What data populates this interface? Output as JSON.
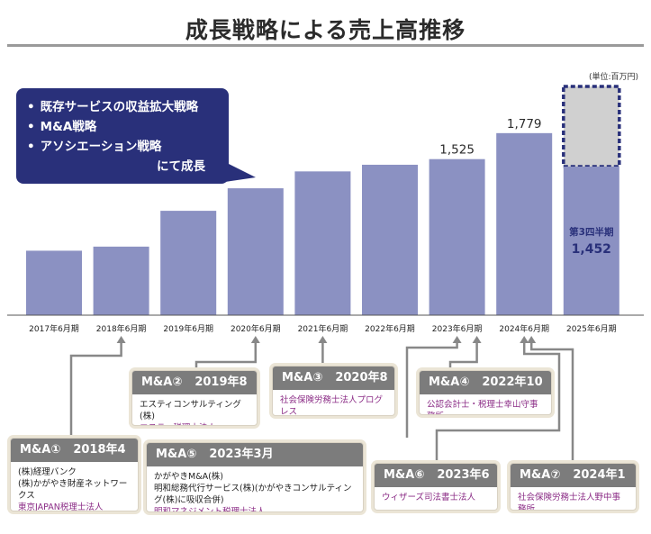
{
  "title": "成長戦略による売上高推移",
  "unit": "(単位:百万円)",
  "callout": {
    "items": [
      "既存サービスの収益拡大戦略",
      "M&A戦略",
      "アソシエーション戦略"
    ],
    "tail": "にて成長"
  },
  "chart_data": {
    "type": "bar",
    "categories": [
      "2017年6月期",
      "2018年6月期",
      "2019年6月期",
      "2020年6月期",
      "2021年6月期",
      "2022年6月期",
      "2023年6月期",
      "2024年6月期",
      "2025年6月期"
    ],
    "values": [
      630,
      670,
      1020,
      1240,
      1405,
      1470,
      1525,
      1779,
      1452
    ],
    "value_labels": [
      "",
      "",
      "",
      "",
      "",
      "",
      "1,525",
      "1,779",
      ""
    ],
    "ylim": [
      0,
      2200
    ],
    "last_bar_note": {
      "period": "第3四半期",
      "value": "1,452"
    },
    "projection": {
      "description": "dashed box above 2025 bar"
    },
    "colors": {
      "bar": "#8b91c2",
      "projection_fill": "#d0d0d0",
      "projection_border": "#29307a",
      "label": "#29307a"
    }
  },
  "deals": [
    {
      "id": "ma1",
      "code": "M&A①",
      "date": "2018年4月",
      "lines": [
        {
          "text": "(株)経理バンク",
          "color": "normal"
        },
        {
          "text": "(株)かがやき財産ネットワークス",
          "color": "normal"
        },
        {
          "text": "東京JAPAN税理士法人",
          "color": "purple"
        }
      ]
    },
    {
      "id": "ma2",
      "code": "M&A②",
      "date": "2019年8月",
      "lines": [
        {
          "text": "エスティコンサルティング(株)",
          "color": "normal"
        },
        {
          "text": "エスティ税理士法人",
          "color": "purple"
        }
      ]
    },
    {
      "id": "ma3",
      "code": "M&A③",
      "date": "2020年8月",
      "lines": [
        {
          "text": "社会保険労務士法人プログレス",
          "color": "purple"
        }
      ]
    },
    {
      "id": "ma4",
      "code": "M&A④",
      "date": "2022年10月",
      "lines": [
        {
          "text": "公認会計士・税理士幸山守事務所",
          "color": "purple"
        }
      ]
    },
    {
      "id": "ma5",
      "code": "M&A⑤",
      "date": "2023年3月",
      "lines": [
        {
          "text": "かがやきM&A(株)",
          "color": "normal"
        },
        {
          "text": "明和総務代行サービス(株)(かがやきコンサルティング(株)に吸収合併)",
          "color": "normal"
        },
        {
          "text": "明和マネジメント税理士法人",
          "color": "purple"
        }
      ]
    },
    {
      "id": "ma6",
      "code": "M&A⑥",
      "date": "2023年6月",
      "lines": [
        {
          "text": "ウィザーズ司法書士法人",
          "color": "purple"
        }
      ]
    },
    {
      "id": "ma7",
      "code": "M&A⑦",
      "date": "2024年1月",
      "lines": [
        {
          "text": "社会保険労務士法人野中事務所",
          "color": "purple"
        }
      ]
    }
  ]
}
